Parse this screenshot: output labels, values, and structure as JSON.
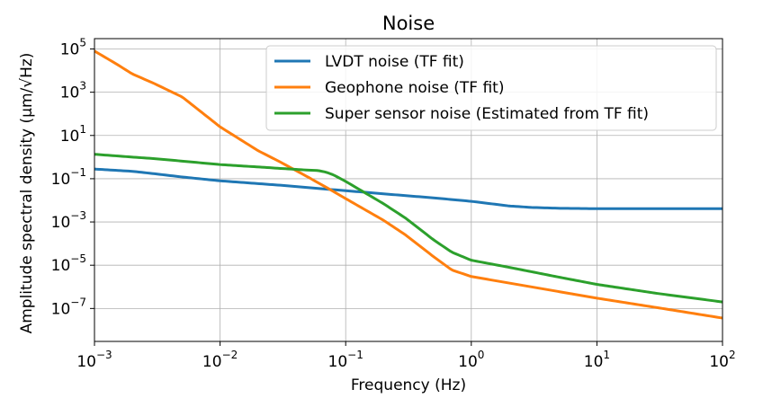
{
  "chart_data": {
    "type": "line",
    "title": "Noise",
    "xlabel": "Frequency (Hz)",
    "ylabel": "Amplitude spectral density (μm/√Hz)",
    "x_scale": "log",
    "y_scale": "log",
    "xlim": [
      0.001,
      100
    ],
    "ylim": [
      3e-09,
      300000
    ],
    "grid": true,
    "legend_position": "top-right",
    "x_ticks": [
      {
        "value": 0.001,
        "base": "10",
        "exp": "−3"
      },
      {
        "value": 0.01,
        "base": "10",
        "exp": "−2"
      },
      {
        "value": 0.1,
        "base": "10",
        "exp": "−1"
      },
      {
        "value": 1,
        "base": "10",
        "exp": "0"
      },
      {
        "value": 10,
        "base": "10",
        "exp": "1"
      },
      {
        "value": 100,
        "base": "10",
        "exp": "2"
      }
    ],
    "y_ticks": [
      {
        "value": 1e-07,
        "base": "10",
        "exp": "−7"
      },
      {
        "value": 1e-05,
        "base": "10",
        "exp": "−5"
      },
      {
        "value": 0.001,
        "base": "10",
        "exp": "−3"
      },
      {
        "value": 0.1,
        "base": "10",
        "exp": "−1"
      },
      {
        "value": 10,
        "base": "10",
        "exp": "1"
      },
      {
        "value": 1000,
        "base": "10",
        "exp": "3"
      },
      {
        "value": 100000,
        "base": "10",
        "exp": "5"
      }
    ],
    "series": [
      {
        "name": "LVDT noise (TF fit)",
        "color": "#1f77b4",
        "x": [
          0.001,
          0.002,
          0.003,
          0.005,
          0.01,
          0.03,
          0.07,
          0.1,
          0.2,
          0.5,
          1,
          2,
          3,
          5,
          10,
          30,
          100
        ],
        "y": [
          0.28,
          0.22,
          0.17,
          0.12,
          0.08,
          0.05,
          0.033,
          0.028,
          0.02,
          0.013,
          0.009,
          0.0055,
          0.0047,
          0.0043,
          0.0041,
          0.0041,
          0.0041
        ]
      },
      {
        "name": "Geophone noise (TF fit)",
        "color": "#ff7f0e",
        "x": [
          0.001,
          0.0015,
          0.002,
          0.003,
          0.005,
          0.01,
          0.02,
          0.03,
          0.05,
          0.07,
          0.1,
          0.2,
          0.3,
          0.5,
          0.7,
          1,
          2,
          5,
          10,
          30,
          100
        ],
        "y": [
          80000,
          20000,
          7000,
          2500,
          600,
          25,
          2,
          0.6,
          0.12,
          0.04,
          0.012,
          0.0012,
          0.00025,
          2.5e-05,
          6e-06,
          3e-06,
          1.5e-06,
          6e-07,
          3e-07,
          1.1e-07,
          3.6e-08
        ]
      },
      {
        "name": "Super sensor noise (Estimated from TF fit)",
        "color": "#2ca02c",
        "x": [
          0.001,
          0.002,
          0.003,
          0.005,
          0.01,
          0.02,
          0.03,
          0.05,
          0.06,
          0.07,
          0.08,
          0.1,
          0.2,
          0.3,
          0.5,
          0.7,
          1,
          2,
          5,
          10,
          30,
          100
        ],
        "y": [
          1.35,
          1.0,
          0.85,
          0.65,
          0.45,
          0.35,
          0.3,
          0.25,
          0.24,
          0.2,
          0.15,
          0.075,
          0.007,
          0.0015,
          0.00015,
          4e-05,
          1.7e-05,
          8e-06,
          2.8e-06,
          1.3e-06,
          5e-07,
          2e-07
        ]
      }
    ]
  }
}
